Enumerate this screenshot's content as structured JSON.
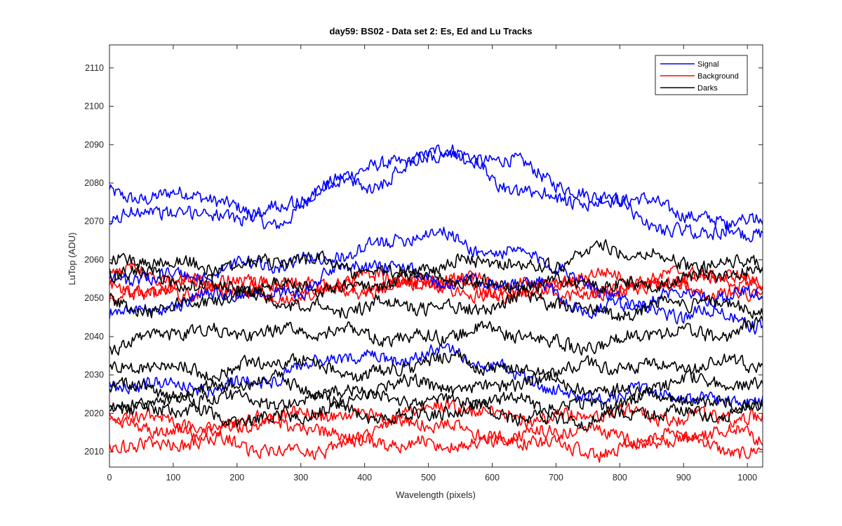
{
  "chart_data": {
    "type": "line",
    "title": "day59: BS02 - Data set 2: Es, Ed and Lu Tracks",
    "xlabel": "Wavelength (pixels)",
    "ylabel": "LuTop (ADU)",
    "xlim": [
      0,
      1024
    ],
    "ylim": [
      2006,
      2116
    ],
    "xticks": [
      0,
      100,
      200,
      300,
      400,
      500,
      600,
      700,
      800,
      900,
      1000
    ],
    "yticks": [
      2010,
      2020,
      2030,
      2040,
      2050,
      2060,
      2070,
      2080,
      2090,
      2100,
      2110
    ],
    "grid": false,
    "legend_position": "top-right",
    "colors": {
      "Signal": "#0000ff",
      "Background": "#ff0000",
      "Darks": "#000000"
    },
    "legend": [
      "Signal",
      "Background",
      "Darks"
    ],
    "series": [
      {
        "group": "Signal",
        "x": [
          0,
          128,
          256,
          384,
          512,
          640,
          768,
          896,
          1024
        ],
        "values": [
          2078,
          2076,
          2071,
          2082,
          2089,
          2084,
          2077,
          2072,
          2068
        ]
      },
      {
        "group": "Signal",
        "x": [
          0,
          128,
          256,
          384,
          512,
          640,
          768,
          896,
          1024
        ],
        "values": [
          2071,
          2072,
          2073,
          2080,
          2087,
          2079,
          2074,
          2068,
          2069
        ]
      },
      {
        "group": "Signal",
        "x": [
          0,
          128,
          256,
          384,
          512,
          640,
          768,
          896,
          1024
        ],
        "values": [
          2054,
          2057,
          2058,
          2063,
          2066,
          2062,
          2052,
          2046,
          2043
        ]
      },
      {
        "group": "Signal",
        "x": [
          0,
          128,
          256,
          384,
          512,
          640,
          768,
          896,
          1024
        ],
        "values": [
          2047,
          2049,
          2052,
          2058,
          2056,
          2053,
          2048,
          2050,
          2052
        ]
      },
      {
        "group": "Signal",
        "x": [
          0,
          128,
          256,
          384,
          512,
          640,
          768,
          896,
          1024
        ],
        "values": [
          2028,
          2026,
          2030,
          2034,
          2036,
          2030,
          2024,
          2025,
          2023
        ]
      },
      {
        "group": "Background",
        "x": [
          0,
          128,
          256,
          384,
          512,
          640,
          768,
          896,
          1024
        ],
        "values": [
          2056,
          2055,
          2052,
          2053,
          2054,
          2052,
          2055,
          2057,
          2053
        ]
      },
      {
        "group": "Background",
        "x": [
          0,
          128,
          256,
          384,
          512,
          640,
          768,
          896,
          1024
        ],
        "values": [
          2053,
          2052,
          2054,
          2055,
          2053,
          2051,
          2053,
          2054,
          2055
        ]
      },
      {
        "group": "Background",
        "x": [
          0,
          128,
          256,
          384,
          512,
          640,
          768,
          896,
          1024
        ],
        "values": [
          2051,
          2053,
          2051,
          2052,
          2055,
          2053,
          2052,
          2053,
          2051
        ]
      },
      {
        "group": "Background",
        "x": [
          0,
          128,
          256,
          384,
          512,
          640,
          768,
          896,
          1024
        ],
        "values": [
          2019,
          2016,
          2018,
          2020,
          2021,
          2020,
          2019,
          2020,
          2018
        ]
      },
      {
        "group": "Background",
        "x": [
          0,
          128,
          256,
          384,
          512,
          640,
          768,
          896,
          1024
        ],
        "values": [
          2016,
          2017,
          2017,
          2015,
          2017,
          2014,
          2015,
          2014,
          2014
        ]
      },
      {
        "group": "Background",
        "x": [
          0,
          128,
          256,
          384,
          512,
          640,
          768,
          896,
          1024
        ],
        "values": [
          2013,
          2012,
          2011,
          2011,
          2013,
          2012,
          2011,
          2012,
          2011
        ]
      },
      {
        "group": "Darks",
        "x": [
          0,
          128,
          256,
          384,
          512,
          640,
          768,
          896,
          1024
        ],
        "values": [
          2060,
          2058,
          2060,
          2057,
          2058,
          2059,
          2062,
          2060,
          2059
        ]
      },
      {
        "group": "Darks",
        "x": [
          0,
          128,
          256,
          384,
          512,
          640,
          768,
          896,
          1024
        ],
        "values": [
          2056,
          2055,
          2052,
          2054,
          2055,
          2054,
          2053,
          2055,
          2056
        ]
      },
      {
        "group": "Darks",
        "x": [
          0,
          128,
          256,
          384,
          512,
          640,
          768,
          896,
          1024
        ],
        "values": [
          2048,
          2049,
          2050,
          2047,
          2048,
          2049,
          2047,
          2048,
          2048
        ]
      },
      {
        "group": "Darks",
        "x": [
          0,
          128,
          256,
          384,
          512,
          640,
          768,
          896,
          1024
        ],
        "values": [
          2039,
          2040,
          2042,
          2040,
          2041,
          2040,
          2038,
          2041,
          2043
        ]
      },
      {
        "group": "Darks",
        "x": [
          0,
          128,
          256,
          384,
          512,
          640,
          768,
          896,
          1024
        ],
        "values": [
          2031,
          2032,
          2033,
          2031,
          2033,
          2032,
          2031,
          2033,
          2032
        ]
      },
      {
        "group": "Darks",
        "x": [
          0,
          128,
          256,
          384,
          512,
          640,
          768,
          896,
          1024
        ],
        "values": [
          2027,
          2026,
          2028,
          2026,
          2027,
          2028,
          2026,
          2028,
          2027
        ]
      },
      {
        "group": "Darks",
        "x": [
          0,
          128,
          256,
          384,
          512,
          640,
          768,
          896,
          1024
        ],
        "values": [
          2023,
          2023,
          2024,
          2023,
          2024,
          2022,
          2023,
          2023,
          2024
        ]
      },
      {
        "group": "Darks",
        "x": [
          0,
          128,
          256,
          384,
          512,
          640,
          768,
          896,
          1024
        ],
        "values": [
          2021,
          2020,
          2019,
          2020,
          2020,
          2020,
          2018,
          2021,
          2020
        ]
      }
    ]
  }
}
